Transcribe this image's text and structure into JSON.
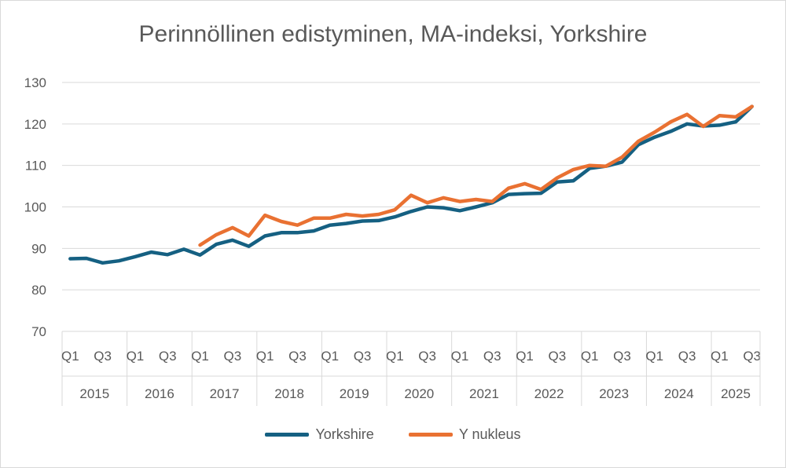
{
  "chart_data": {
    "type": "line",
    "title": "Perinnöllinen edistyminen, MA-indeksi, Yorkshire",
    "xlabel": "",
    "ylabel": "",
    "ylim": [
      70,
      130
    ],
    "yticks": [
      70,
      80,
      90,
      100,
      110,
      120,
      130
    ],
    "grid": true,
    "legend_position": "bottom",
    "years": [
      "2015",
      "2016",
      "2017",
      "2018",
      "2019",
      "2020",
      "2021",
      "2022",
      "2023",
      "2024",
      "2025"
    ],
    "quarter_labels": [
      "Q1",
      "Q3"
    ],
    "quarters_per_year": [
      4,
      4,
      4,
      4,
      4,
      4,
      4,
      4,
      4,
      4,
      3
    ],
    "series": [
      {
        "name": "Yorkshire",
        "color": "#156082",
        "values": [
          87.5,
          87.6,
          86.5,
          87.0,
          88.0,
          89.1,
          88.5,
          89.8,
          88.4,
          91.0,
          92.0,
          90.5,
          93.0,
          93.8,
          93.8,
          94.2,
          95.6,
          96.0,
          96.6,
          96.7,
          97.6,
          98.9,
          100.0,
          99.8,
          99.1,
          100.0,
          101.0,
          103.0,
          103.2,
          103.3,
          106.0,
          106.3,
          109.3,
          109.8,
          110.8,
          115.0,
          116.8,
          118.2,
          120.0,
          119.5,
          119.7,
          120.5,
          124.2
        ]
      },
      {
        "name": "Y nukleus",
        "color": "#E97132",
        "values": [
          null,
          null,
          null,
          null,
          null,
          null,
          null,
          null,
          90.8,
          93.3,
          95.0,
          93.0,
          98.0,
          96.5,
          95.6,
          97.3,
          97.3,
          98.2,
          97.8,
          98.2,
          99.3,
          102.8,
          101.0,
          102.2,
          101.3,
          101.8,
          101.3,
          104.5,
          105.6,
          104.2,
          107.0,
          109.0,
          110.0,
          109.8,
          112.0,
          115.8,
          118.0,
          120.5,
          122.3,
          119.4,
          122.0,
          121.7,
          124.2
        ]
      }
    ]
  }
}
